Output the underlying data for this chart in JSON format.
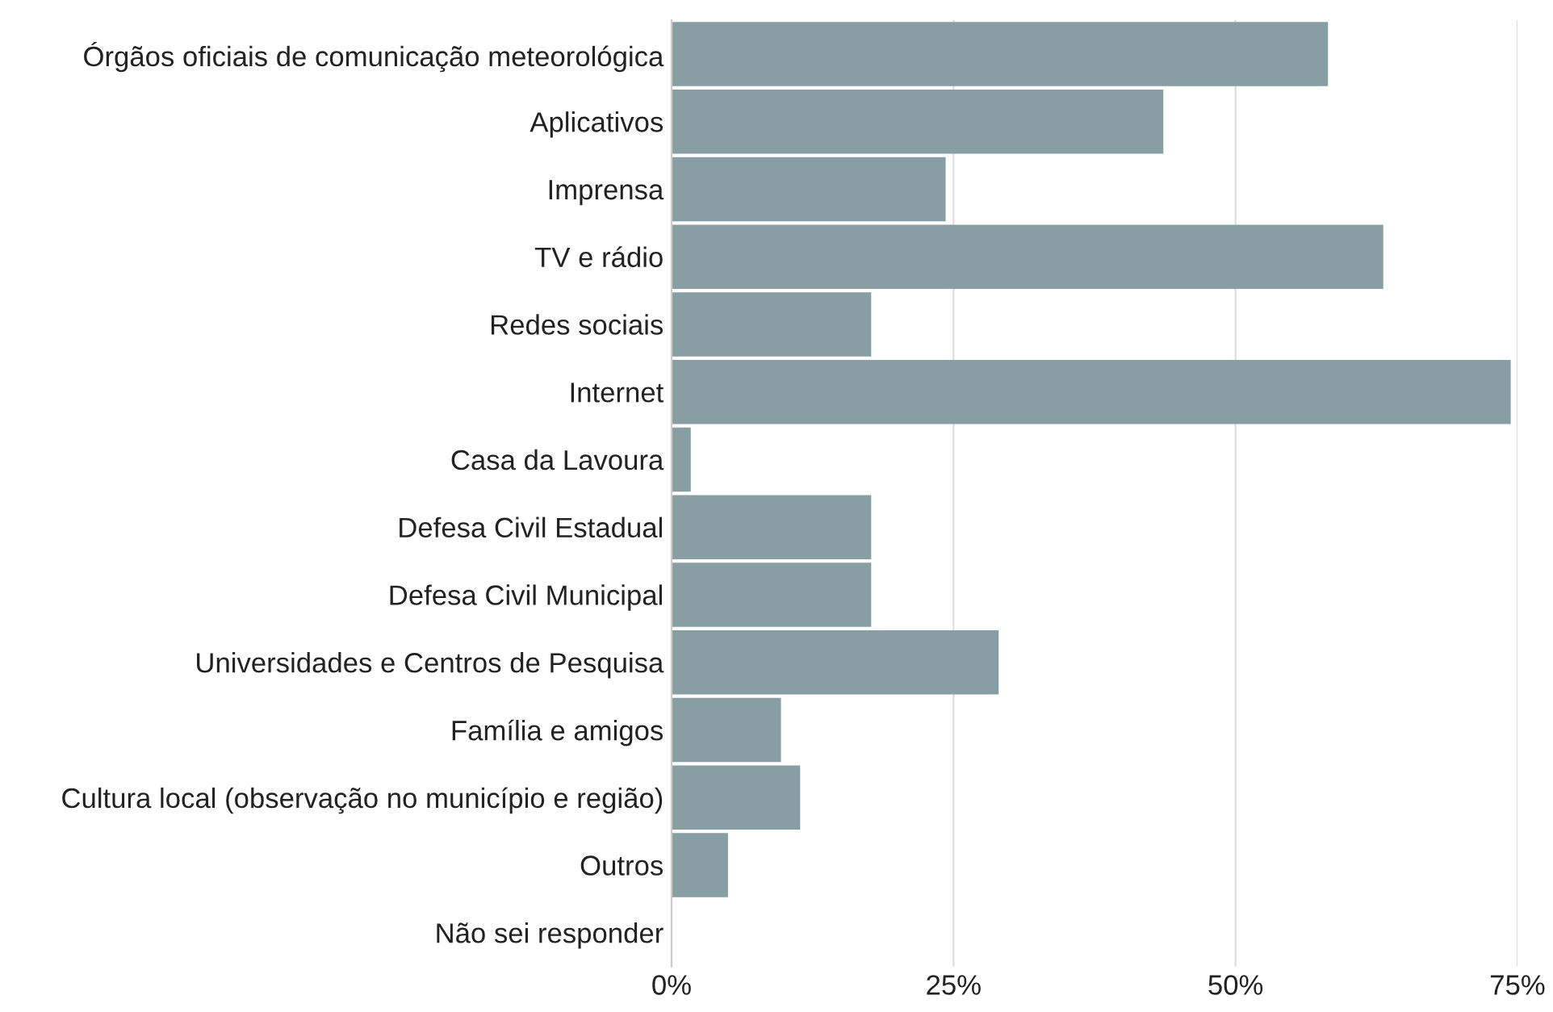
{
  "chart_data": {
    "type": "bar",
    "orientation": "horizontal",
    "categories": [
      "Órgãos oficiais de comunicação meteorológica",
      "Aplicativos",
      "Imprensa",
      "TV e rádio",
      "Redes sociais",
      "Internet",
      "Casa da Lavoura",
      "Defesa Civil Estadual",
      "Defesa Civil Municipal",
      "Universidades e Centros de Pesquisa",
      "Família e amigos",
      "Cultura local (observação no município e região)",
      "Outros",
      "Não sei responder"
    ],
    "values": [
      58.2,
      43.6,
      24.3,
      63.1,
      17.7,
      74.4,
      1.7,
      17.7,
      17.7,
      29.0,
      9.7,
      11.4,
      5.0,
      0
    ],
    "color": "#879fa3",
    "xlim": [
      0,
      75
    ],
    "xticks": [
      {
        "value": 0,
        "label": "0%"
      },
      {
        "value": 25,
        "label": "25%"
      },
      {
        "value": 50,
        "label": "50%"
      },
      {
        "value": 75,
        "label": "75%"
      }
    ],
    "grid": "x"
  }
}
